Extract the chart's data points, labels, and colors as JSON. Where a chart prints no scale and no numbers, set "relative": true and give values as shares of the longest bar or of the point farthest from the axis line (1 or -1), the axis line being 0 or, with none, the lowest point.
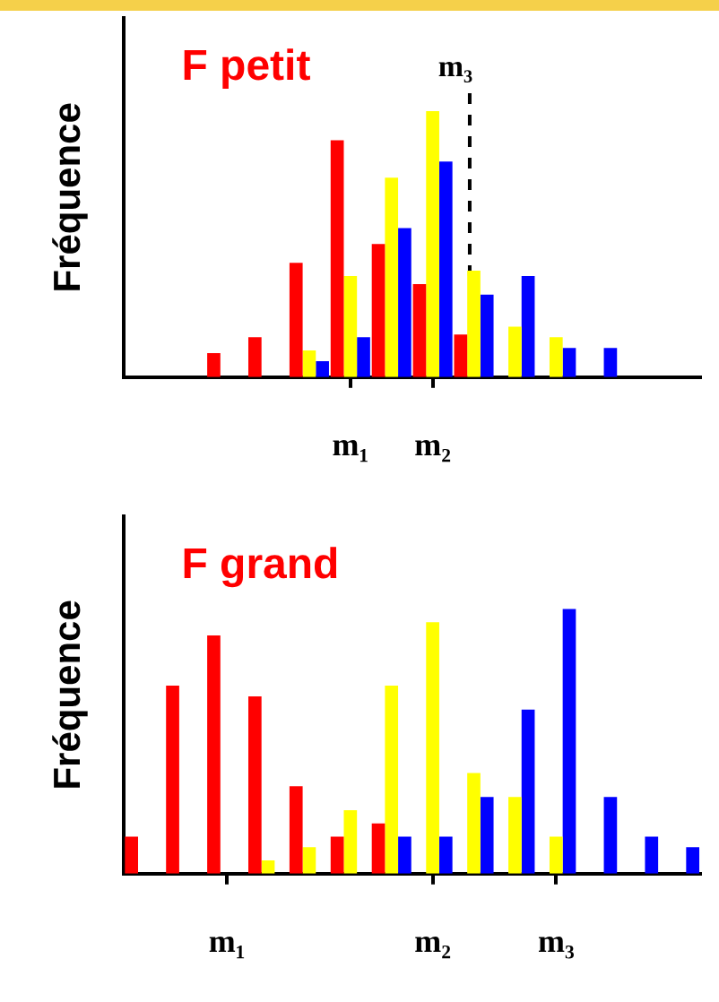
{
  "chart_data": [
    {
      "type": "bar",
      "title": "F petit",
      "ylabel": "Fréquence",
      "relative": true,
      "categories": [
        null,
        null,
        null,
        null,
        null,
        "m₁",
        null,
        "m₂",
        null,
        null,
        null,
        null,
        null,
        null
      ],
      "annotations": [
        "m₃"
      ],
      "series": [
        {
          "color": "#ff0000",
          "values": [
            null,
            null,
            0.09,
            0.15,
            0.43,
            0.89,
            0.5,
            0.35,
            0.16,
            null,
            null,
            null,
            null,
            null
          ]
        },
        {
          "color": "#ffff00",
          "values": [
            null,
            null,
            null,
            null,
            0.1,
            0.38,
            0.75,
            1,
            0.4,
            0.19,
            0.15,
            null,
            null,
            null
          ]
        },
        {
          "color": "#0000ff",
          "values": [
            null,
            null,
            null,
            null,
            0.06,
            0.15,
            0.56,
            0.81,
            0.31,
            0.38,
            0.11,
            0.11,
            null,
            null
          ]
        }
      ]
    },
    {
      "type": "bar",
      "title": "F grand",
      "ylabel": "Fréquence",
      "relative": true,
      "categories": [
        null,
        null,
        "m₁",
        null,
        null,
        null,
        null,
        "m₂",
        null,
        null,
        "m₃",
        null,
        null,
        null
      ],
      "series": [
        {
          "color": "#ff0000",
          "values": [
            0.14,
            0.71,
            0.9,
            0.67,
            0.33,
            0.14,
            0.19,
            null,
            null,
            null,
            null,
            null,
            null,
            null
          ]
        },
        {
          "color": "#ffff00",
          "values": [
            null,
            null,
            null,
            0.05,
            0.1,
            0.24,
            0.71,
            0.95,
            0.38,
            0.29,
            0.14,
            null,
            null,
            null
          ]
        },
        {
          "color": "#0000ff",
          "values": [
            null,
            null,
            null,
            null,
            null,
            null,
            0.14,
            0.14,
            0.29,
            0.62,
            1,
            0.29,
            0.14,
            0.1
          ]
        }
      ]
    }
  ]
}
